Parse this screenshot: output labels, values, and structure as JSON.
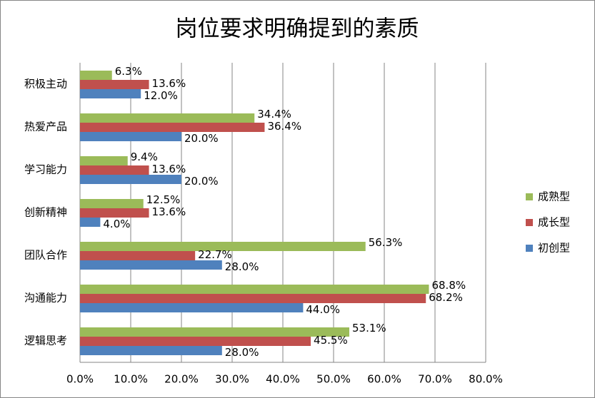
{
  "chart_data": {
    "type": "hbar",
    "title": "岗位要求明确提到的素质",
    "categories": [
      "积极主动",
      "热爱产品",
      "学习能力",
      "创新精神",
      "团队合作",
      "沟通能力",
      "逻辑思考"
    ],
    "series": [
      {
        "name": "成熟型",
        "color": "#9bbb59",
        "values": [
          6.3,
          34.4,
          9.4,
          12.5,
          56.3,
          68.8,
          53.1
        ],
        "value_labels": [
          "6.3%",
          "34.4%",
          "9.4%",
          "12.5%",
          "56.3%",
          "68.8%",
          "53.1%"
        ]
      },
      {
        "name": "成长型",
        "color": "#c0504d",
        "values": [
          13.6,
          36.4,
          13.6,
          13.6,
          22.7,
          68.2,
          45.5
        ],
        "value_labels": [
          "13.6%",
          "36.4%",
          "13.6%",
          "13.6%",
          "22.7%",
          "68.2%",
          "45.5%"
        ]
      },
      {
        "name": "初创型",
        "color": "#4f81bd",
        "values": [
          12.0,
          20.0,
          20.0,
          4.0,
          28.0,
          44.0,
          28.0
        ],
        "value_labels": [
          "12.0%",
          "20.0%",
          "20.0%",
          "4.0%",
          "28.0%",
          "44.0%",
          "28.0%"
        ]
      }
    ],
    "xlim": [
      0,
      80
    ],
    "xticks": [
      {
        "value": 0,
        "label": "0.0%"
      },
      {
        "value": 10,
        "label": "10.0%"
      },
      {
        "value": 20,
        "label": "20.0%"
      },
      {
        "value": 30,
        "label": "30.0%"
      },
      {
        "value": 40,
        "label": "40.0%"
      },
      {
        "value": 50,
        "label": "50.0%"
      },
      {
        "value": 60,
        "label": "60.0%"
      },
      {
        "value": 70,
        "label": "70.0%"
      },
      {
        "value": 80,
        "label": "80.0%"
      }
    ],
    "grid": true,
    "legend": "right"
  }
}
